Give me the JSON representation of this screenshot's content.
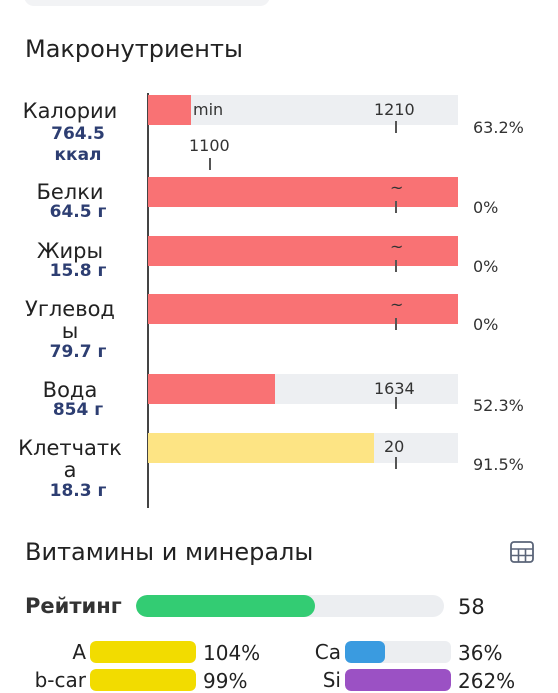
{
  "macros": {
    "title": "Макронутриенты",
    "rows": [
      {
        "name": "Калории",
        "amount_line1": "764.5",
        "amount_line2": "ккал",
        "percent": "63.2%",
        "tick_above": "1210",
        "tick_below": "1100",
        "min_label": "min"
      },
      {
        "name": "Белки",
        "amount": "64.5 г",
        "percent": "0%",
        "marker": "~"
      },
      {
        "name": "Жиры",
        "amount": "15.8 г",
        "percent": "0%",
        "marker": "~"
      },
      {
        "name_line1": "Углевод",
        "name_line2": "ы",
        "amount": "79.7 г",
        "percent": "0%",
        "marker": "~"
      },
      {
        "name": "Вода",
        "amount": "854 г",
        "percent": "52.3%",
        "tick_above": "1634"
      },
      {
        "name_line1": "Клетчатк",
        "name_line2": "а",
        "amount": "18.3 г",
        "percent": "91.5%",
        "tick_above": "20"
      }
    ],
    "bar_fill_fraction": [
      0.14,
      1.0,
      1.0,
      1.0,
      0.41,
      0.73
    ]
  },
  "vitamins": {
    "title": "Витамины и минералы",
    "table_icon": "table-grid-icon",
    "rating": {
      "label": "Рейтинг",
      "value": "58",
      "fraction": 0.58,
      "color": "#33cc73"
    },
    "items": [
      {
        "name": "A",
        "percent": "104%",
        "color": "#f2dc00"
      },
      {
        "name": "b-car",
        "percent": "99%",
        "color": "#f2dc00"
      },
      {
        "name": "Ca",
        "percent": "36%",
        "color": "#3a9be0"
      },
      {
        "name": "Si",
        "percent": "262%",
        "color": "#9b51c4"
      }
    ]
  },
  "colors": {
    "bar_red": "#f97274",
    "bar_yellow": "#fde484",
    "amount_text": "#2d3e72"
  }
}
